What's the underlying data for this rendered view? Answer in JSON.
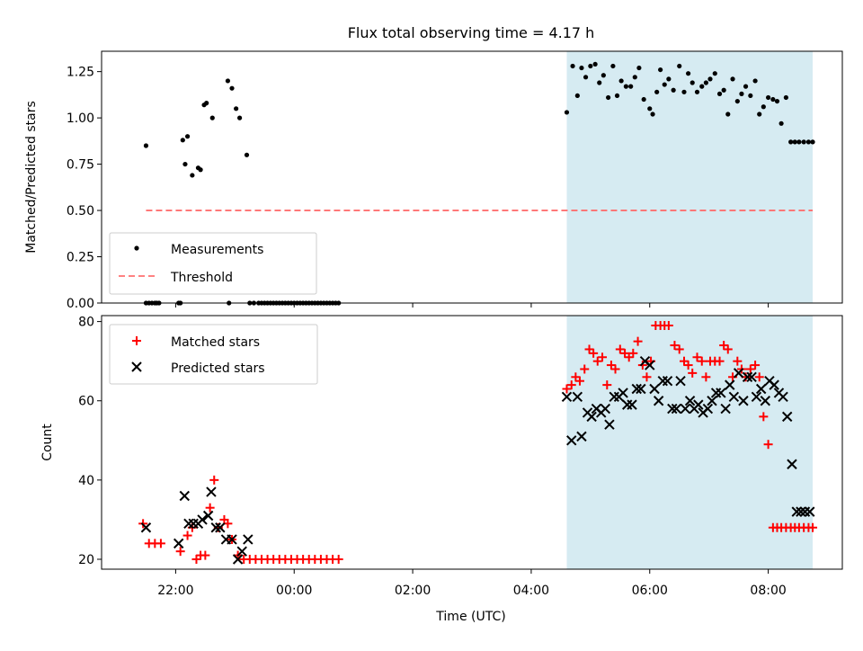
{
  "title": "Flux total observing time = 4.17 h",
  "chart_data": [
    {
      "type": "scatter",
      "ylabel": "Matched/Predicted stars",
      "ylim": [
        0,
        1.36
      ],
      "yticks": [
        0.0,
        0.25,
        0.5,
        0.75,
        1.0,
        1.25
      ],
      "ytick_labels": [
        "0.00",
        "0.25",
        "0.50",
        "0.75",
        "1.00",
        "1.25"
      ],
      "xlim": [
        20.75,
        33.25
      ],
      "grid": false,
      "legend_position": "bottom-left",
      "legend": [
        "Measurements",
        "Threshold"
      ],
      "shaded_span": {
        "x0": 28.6,
        "x1": 32.75,
        "color": "#add8e6"
      },
      "threshold": {
        "y": 0.5,
        "x0": 21.5,
        "x1": 32.75,
        "color": "#ff7070"
      },
      "x": [
        21.5,
        21.55,
        21.65,
        21.72,
        22.08,
        22.12,
        22.16,
        22.2,
        22.28,
        22.38,
        22.42,
        22.48,
        22.52,
        22.62,
        22.88,
        22.95,
        23.02,
        23.08,
        23.2,
        23.25,
        23.32,
        21.5,
        21.6,
        21.68,
        22.05,
        22.9,
        23.4,
        23.45,
        23.5,
        23.55,
        23.6,
        23.65,
        23.7,
        23.75,
        23.8,
        23.85,
        23.9,
        23.95,
        24.0,
        24.05,
        24.1,
        24.15,
        24.2,
        24.25,
        24.3,
        24.35,
        24.4,
        24.45,
        24.5,
        24.55,
        24.6,
        24.65,
        24.7,
        24.75,
        28.6,
        28.7,
        28.78,
        28.85,
        28.92,
        29.0,
        29.08,
        29.15,
        29.22,
        29.3,
        29.38,
        29.45,
        29.52,
        29.6,
        29.68,
        29.75,
        29.82,
        29.9,
        30.0,
        30.05,
        30.12,
        30.18,
        30.25,
        30.32,
        30.4,
        30.5,
        30.58,
        30.65,
        30.72,
        30.8,
        30.88,
        30.95,
        31.02,
        31.1,
        31.18,
        31.25,
        31.32,
        31.4,
        31.48,
        31.55,
        31.62,
        31.7,
        31.78,
        31.85,
        31.92,
        32.0,
        32.08,
        32.15,
        32.22,
        32.3,
        32.38,
        32.45,
        32.52,
        32.6,
        32.68,
        32.75
      ],
      "y": [
        0.85,
        0.0,
        0.0,
        0.0,
        0.0,
        0.88,
        0.75,
        0.9,
        0.69,
        0.73,
        0.72,
        1.07,
        1.08,
        1.0,
        1.2,
        1.16,
        1.05,
        1.0,
        0.8,
        0.0,
        0.0,
        0.0,
        0.0,
        0.0,
        0.0,
        0.0,
        0.0,
        0.0,
        0.0,
        0.0,
        0.0,
        0.0,
        0.0,
        0.0,
        0.0,
        0.0,
        0.0,
        0.0,
        0.0,
        0.0,
        0.0,
        0.0,
        0.0,
        0.0,
        0.0,
        0.0,
        0.0,
        0.0,
        0.0,
        0.0,
        0.0,
        0.0,
        0.0,
        0.0,
        1.03,
        1.28,
        1.12,
        1.27,
        1.22,
        1.28,
        1.29,
        1.19,
        1.23,
        1.11,
        1.28,
        1.12,
        1.2,
        1.17,
        1.17,
        1.22,
        1.27,
        1.1,
        1.05,
        1.02,
        1.14,
        1.26,
        1.18,
        1.21,
        1.15,
        1.28,
        1.14,
        1.24,
        1.19,
        1.14,
        1.17,
        1.19,
        1.21,
        1.24,
        1.13,
        1.15,
        1.02,
        1.21,
        1.09,
        1.13,
        1.17,
        1.12,
        1.2,
        1.02,
        1.06,
        1.11,
        1.1,
        1.09,
        0.97,
        1.11,
        0.87,
        0.87,
        0.87,
        0.87,
        0.87,
        0.87
      ],
      "series": [
        {
          "name": "Measurements",
          "color": "#000000",
          "marker": "dot"
        },
        {
          "name": "Threshold",
          "color": "#ff7070",
          "style": "dashed"
        }
      ]
    },
    {
      "type": "scatter",
      "ylabel": "Count",
      "xlabel": "Time (UTC)",
      "ylim": [
        17.5,
        81.5
      ],
      "yticks": [
        20,
        40,
        60,
        80
      ],
      "ytick_labels": [
        "20",
        "40",
        "60",
        "80"
      ],
      "xlim": [
        20.75,
        33.25
      ],
      "xticks": [
        22,
        24,
        26,
        28,
        30,
        32
      ],
      "xtick_labels": [
        "22:00",
        "00:00",
        "02:00",
        "04:00",
        "06:00",
        "08:00"
      ],
      "grid": false,
      "legend_position": "top-left",
      "legend": [
        "Matched stars",
        "Predicted stars"
      ],
      "shaded_span": {
        "x0": 28.6,
        "x1": 32.75,
        "color": "#add8e6"
      },
      "series": [
        {
          "name": "Matched stars",
          "color": "#ff0000",
          "marker": "plus",
          "x": [
            21.45,
            21.55,
            21.65,
            21.75,
            22.08,
            22.2,
            22.28,
            22.35,
            22.42,
            22.5,
            22.58,
            22.65,
            22.72,
            22.82,
            22.88,
            22.95,
            23.05,
            23.15,
            23.25,
            23.35,
            23.45,
            23.55,
            23.65,
            23.75,
            23.85,
            23.95,
            24.05,
            24.15,
            24.25,
            24.35,
            24.45,
            24.55,
            24.65,
            24.75,
            28.6,
            28.68,
            28.75,
            28.82,
            28.9,
            28.98,
            29.05,
            29.12,
            29.2,
            29.28,
            29.35,
            29.42,
            29.5,
            29.58,
            29.65,
            29.72,
            29.8,
            29.88,
            29.95,
            30.02,
            30.1,
            30.18,
            30.25,
            30.32,
            30.42,
            30.5,
            30.58,
            30.65,
            30.72,
            30.8,
            30.88,
            30.95,
            31.02,
            31.1,
            31.18,
            31.25,
            31.32,
            31.4,
            31.48,
            31.55,
            31.62,
            31.7,
            31.78,
            31.85,
            31.92,
            32.0,
            32.08,
            32.15,
            32.22,
            32.3,
            32.38,
            32.45,
            32.52,
            32.6,
            32.68,
            32.75
          ],
          "y": [
            29,
            24,
            24,
            24,
            22,
            26,
            28,
            20,
            21,
            21,
            33,
            40,
            28,
            30,
            29,
            25,
            21,
            20,
            20,
            20,
            20,
            20,
            20,
            20,
            20,
            20,
            20,
            20,
            20,
            20,
            20,
            20,
            20,
            20,
            63,
            64,
            66,
            65,
            68,
            73,
            72,
            70,
            71,
            64,
            69,
            68,
            73,
            72,
            71,
            72,
            75,
            69,
            66,
            70,
            79,
            79,
            79,
            79,
            74,
            73,
            70,
            69,
            67,
            71,
            70,
            66,
            70,
            70,
            70,
            74,
            73,
            66,
            70,
            68,
            66,
            68,
            69,
            66,
            56,
            49,
            28,
            28,
            28,
            28,
            28,
            28,
            28,
            28,
            28,
            28
          ]
        },
        {
          "name": "Predicted stars",
          "color": "#000000",
          "marker": "x",
          "x": [
            21.5,
            22.05,
            22.15,
            22.22,
            22.3,
            22.38,
            22.45,
            22.55,
            22.6,
            22.68,
            22.75,
            22.85,
            22.95,
            23.05,
            23.12,
            23.22,
            28.6,
            28.68,
            28.78,
            28.85,
            28.95,
            29.02,
            29.1,
            29.18,
            29.25,
            29.32,
            29.4,
            29.48,
            29.55,
            29.62,
            29.7,
            29.78,
            29.85,
            29.92,
            30.0,
            30.08,
            30.15,
            30.22,
            30.3,
            30.38,
            30.45,
            30.52,
            30.6,
            30.68,
            30.75,
            30.82,
            30.9,
            30.98,
            31.05,
            31.12,
            31.2,
            31.28,
            31.35,
            31.42,
            31.5,
            31.58,
            31.65,
            31.72,
            31.8,
            31.88,
            31.95,
            32.02,
            32.1,
            32.18,
            32.25,
            32.32,
            32.4,
            32.48,
            32.55,
            32.62,
            32.7
          ],
          "y": [
            28,
            24,
            36,
            29,
            29,
            29,
            30,
            31,
            37,
            28,
            28,
            25,
            25,
            20,
            22,
            25,
            61,
            50,
            61,
            51,
            57,
            56,
            58,
            57,
            58,
            54,
            61,
            61,
            62,
            59,
            59,
            63,
            63,
            70,
            69,
            63,
            60,
            65,
            65,
            58,
            58,
            65,
            58,
            60,
            58,
            59,
            57,
            58,
            60,
            62,
            62,
            58,
            64,
            61,
            67,
            60,
            66,
            66,
            61,
            63,
            60,
            65,
            64,
            62,
            61,
            56,
            44,
            32,
            32,
            32,
            32
          ]
        }
      ]
    }
  ]
}
